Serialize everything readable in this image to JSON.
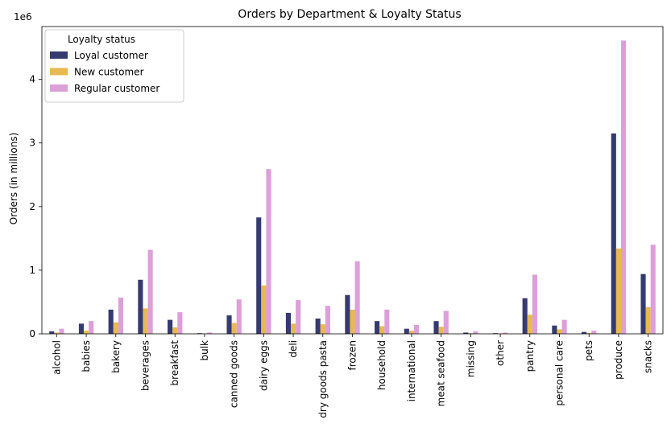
{
  "chart_data": {
    "type": "bar",
    "title": "Orders by Department & Loyalty Status",
    "xlabel": "",
    "ylabel": "Orders (in millions)",
    "offset_label": "1e6",
    "ylim": [
      0,
      4.83
    ],
    "yticks": [
      0,
      1,
      2,
      3,
      4
    ],
    "grid": false,
    "legend": {
      "title": "Loyalty status",
      "placement": "upper-left"
    },
    "categories": [
      "alcohol",
      "babies",
      "bakery",
      "beverages",
      "breakfast",
      "bulk",
      "canned goods",
      "dairy eggs",
      "deli",
      "dry goods pasta",
      "frozen",
      "household",
      "international",
      "meat seafood",
      "missing",
      "other",
      "pantry",
      "personal care",
      "pets",
      "produce",
      "snacks"
    ],
    "series": [
      {
        "name": "Loyal customer",
        "color": "#353a70",
        "values": [
          0.04,
          0.16,
          0.38,
          0.85,
          0.22,
          0.01,
          0.29,
          1.83,
          0.33,
          0.24,
          0.61,
          0.2,
          0.08,
          0.2,
          0.02,
          0.01,
          0.56,
          0.13,
          0.03,
          3.15,
          0.94
        ]
      },
      {
        "name": "New customer",
        "color": "#e8b94f",
        "values": [
          0.02,
          0.05,
          0.18,
          0.4,
          0.1,
          0.005,
          0.17,
          0.76,
          0.16,
          0.15,
          0.38,
          0.12,
          0.05,
          0.11,
          0.01,
          0.005,
          0.3,
          0.07,
          0.015,
          1.34,
          0.42
        ]
      },
      {
        "name": "Regular customer",
        "color": "#dd9fd9",
        "values": [
          0.08,
          0.2,
          0.57,
          1.32,
          0.34,
          0.02,
          0.54,
          2.59,
          0.53,
          0.44,
          1.14,
          0.38,
          0.14,
          0.36,
          0.04,
          0.02,
          0.93,
          0.22,
          0.05,
          4.61,
          1.4
        ]
      }
    ]
  }
}
